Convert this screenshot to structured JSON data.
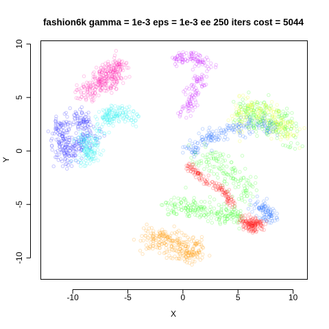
{
  "chart_data": {
    "type": "scatter",
    "title": "fashion6k gamma = 1e-3 eps = 1e-3 ee 250 iters cost = 5044",
    "xlabel": "X",
    "ylabel": "Y",
    "xlim": [
      -12.9,
      11.3
    ],
    "ylim": [
      -12,
      10.3
    ],
    "xticks": [
      -10,
      -5,
      0,
      5,
      10
    ],
    "yticks": [
      -10,
      -5,
      0,
      5,
      10
    ],
    "grid": false,
    "legend": "none",
    "series": [
      {
        "color": "#ff2fb5",
        "clusters": [
          {
            "x": [
              -9.0,
              -7.2,
              -5.5
            ],
            "y": [
              5.0,
              7.1,
              8.2
            ],
            "spread": 0.65,
            "count": 220
          },
          {
            "x": [
              -7.6,
              -6.8,
              -5.8
            ],
            "y": [
              6.5,
              6.0,
              7.4
            ],
            "spread": 0.55,
            "count": 80
          }
        ]
      },
      {
        "color": "#2f2fff",
        "clusters": [
          {
            "x": [
              -10.8,
              -11.2,
              -10.5,
              -8.3
            ],
            "y": [
              3.0,
              1.0,
              -0.8,
              2.0
            ],
            "spread": 0.7,
            "count": 240
          },
          {
            "x": [
              -9.5,
              -8.8
            ],
            "y": [
              3.5,
              2.2
            ],
            "spread": 0.55,
            "count": 60
          }
        ]
      },
      {
        "color": "#28f0f0",
        "clusters": [
          {
            "x": [
              -9.0,
              -8.3,
              -7.0,
              -6.0,
              -4.2
            ],
            "y": [
              -1.0,
              0.3,
              3.2,
              3.6,
              3.1
            ],
            "spread": 0.55,
            "count": 210
          },
          {
            "x": [
              -9.3,
              -8.0
            ],
            "y": [
              1.5,
              -0.5
            ],
            "spread": 0.5,
            "count": 60
          }
        ]
      },
      {
        "color": "#c81cff",
        "clusters": [
          {
            "x": [
              -0.8,
              0.8,
              2.2
            ],
            "y": [
              8.6,
              8.7,
              8.1
            ],
            "spread": 0.5,
            "count": 90
          },
          {
            "x": [
              1.6,
              0.9,
              0.1
            ],
            "y": [
              6.8,
              5.2,
              3.4
            ],
            "spread": 0.45,
            "count": 90
          }
        ]
      },
      {
        "color": "#ff9f12",
        "clusters": [
          {
            "x": [
              -3.2,
              -2.0,
              -0.9,
              0.6,
              1.3
            ],
            "y": [
              -8.3,
              -8.2,
              -8.9,
              -9.3,
              -9.3
            ],
            "spread": 0.85,
            "count": 280
          }
        ]
      },
      {
        "color": "#39ff28",
        "clusters": [
          {
            "x": [
              -1.2,
              1.0,
              3.5,
              5.5
            ],
            "y": [
              -5.2,
              -5.3,
              -5.9,
              -6.0
            ],
            "spread": 0.7,
            "count": 200
          },
          {
            "x": [
              5.3,
              6.7,
              7.5,
              8.7,
              9.8
            ],
            "y": [
              3.6,
              3.8,
              2.4,
              3.3,
              1.0
            ],
            "spread": 1.0,
            "count": 220
          },
          {
            "x": [
              1.0,
              3.0,
              5.0,
              6.2
            ],
            "y": [
              -0.5,
              -1.0,
              -2.6,
              -4.3
            ],
            "spread": 0.8,
            "count": 140
          }
        ]
      },
      {
        "color": "#e9ff26",
        "clusters": [
          {
            "x": [
              5.9,
              7.8,
              9.1,
              9.9
            ],
            "y": [
              4.2,
              3.3,
              2.4,
              1.5
            ],
            "spread": 0.8,
            "count": 130
          },
          {
            "x": [
              4.8,
              5.8
            ],
            "y": [
              2.0,
              4.5
            ],
            "spread": 0.7,
            "count": 50
          }
        ]
      },
      {
        "color": "#2b73ff",
        "clusters": [
          {
            "x": [
              0.2,
              2.0,
              4.0,
              6.0,
              8.5
            ],
            "y": [
              -0.2,
              1.2,
              1.8,
              2.4,
              2.2
            ],
            "spread": 0.55,
            "count": 180
          },
          {
            "x": [
              6.5,
              7.5,
              8.2
            ],
            "y": [
              -4.8,
              -5.8,
              -6.2
            ],
            "spread": 0.55,
            "count": 90
          }
        ]
      },
      {
        "color": "#ff1818",
        "clusters": [
          {
            "x": [
              0.5,
              2.0,
              3.5,
              4.6
            ],
            "y": [
              -1.3,
              -2.7,
              -3.6,
              -5.1
            ],
            "spread": 0.28,
            "count": 130
          },
          {
            "x": [
              5.4,
              6.2,
              7.1
            ],
            "y": [
              -6.6,
              -7.0,
              -6.8
            ],
            "spread": 0.45,
            "count": 140
          }
        ]
      }
    ]
  }
}
